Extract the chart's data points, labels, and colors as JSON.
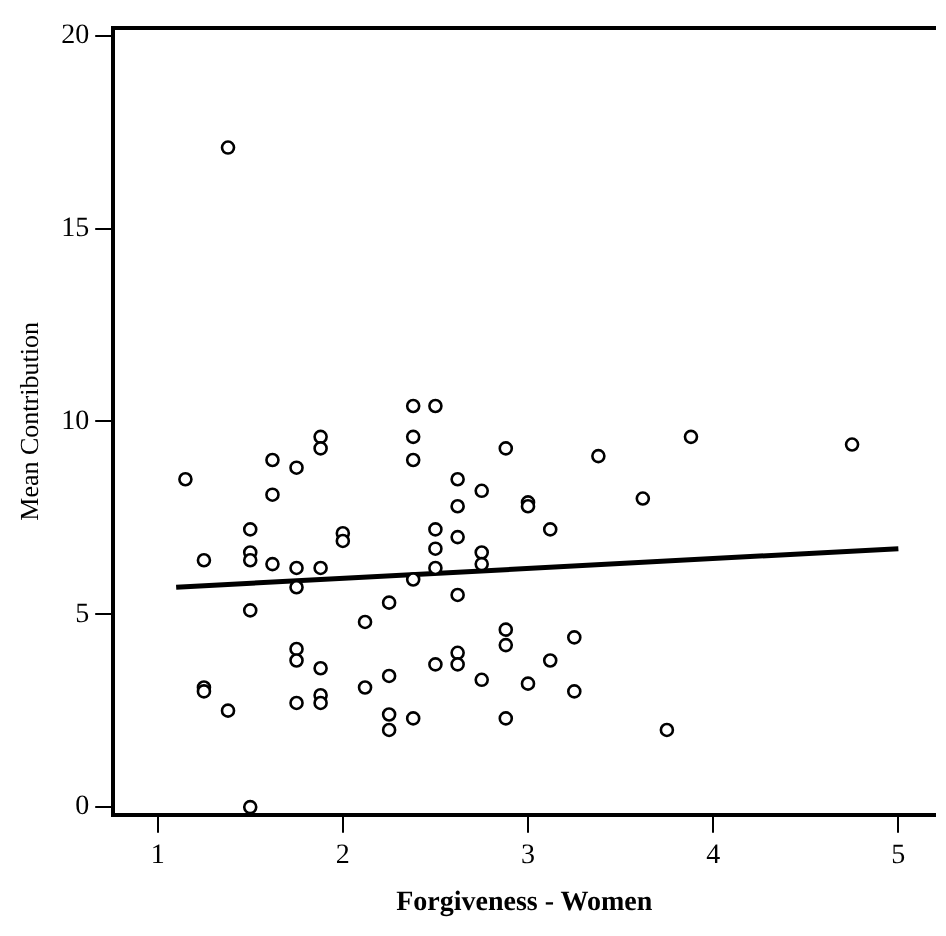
{
  "chart_data": {
    "type": "scatter",
    "xlabel": "Forgiveness - Women",
    "ylabel": "Mean Contribution",
    "xlim": [
      0.76,
      5.2
    ],
    "ylim": [
      -0.2,
      20.2
    ],
    "xticks": [
      1,
      2,
      3,
      4,
      5
    ],
    "yticks": [
      0,
      5,
      10,
      15,
      20
    ],
    "grid": false,
    "legend": false,
    "marker": "circle",
    "series": [
      {
        "color": "#000000",
        "x": [
          1.38,
          1.15,
          1.25,
          1.25,
          1.25,
          1.38,
          1.5,
          1.5,
          1.5,
          1.5,
          1.5,
          1.62,
          1.62,
          1.62,
          1.75,
          1.75,
          1.75,
          1.75,
          1.75,
          1.75,
          1.88,
          1.88,
          1.88,
          1.88,
          1.88,
          1.88,
          2.0,
          2.0,
          2.12,
          2.12,
          2.25,
          2.25,
          2.25,
          2.25,
          2.38,
          2.38,
          2.38,
          2.38,
          2.38,
          2.5,
          2.5,
          2.5,
          2.5,
          2.5,
          2.62,
          2.62,
          2.62,
          2.62,
          2.62,
          2.62,
          2.75,
          2.75,
          2.75,
          2.75,
          2.88,
          2.88,
          2.88,
          2.88,
          3.0,
          3.0,
          3.0,
          3.12,
          3.12,
          3.25,
          3.25,
          3.38,
          3.62,
          3.75,
          3.88,
          4.75
        ],
        "values": [
          17.1,
          8.5,
          6.4,
          3.1,
          3.0,
          2.5,
          7.2,
          6.6,
          6.4,
          5.1,
          0,
          9.0,
          8.1,
          6.3,
          8.8,
          6.2,
          5.7,
          4.1,
          3.8,
          2.7,
          9.6,
          9.3,
          6.2,
          3.6,
          2.9,
          2.7,
          7.1,
          6.9,
          4.8,
          3.1,
          5.3,
          3.4,
          2.4,
          2.0,
          10.4,
          9.6,
          9.0,
          5.9,
          2.3,
          10.4,
          7.2,
          6.7,
          6.2,
          3.7,
          8.5,
          7.8,
          7.0,
          5.5,
          4.0,
          3.7,
          8.2,
          6.6,
          6.3,
          3.3,
          9.3,
          4.6,
          4.2,
          2.3,
          7.9,
          7.8,
          3.2,
          7.2,
          3.8,
          4.4,
          3.0,
          9.1,
          8.0,
          2.0,
          9.6,
          9.4
        ]
      },
      {
        "type": "line",
        "color": "#000000",
        "marker": "none",
        "x": [
          1.1,
          5.0
        ],
        "values": [
          5.7,
          6.7
        ]
      }
    ]
  }
}
